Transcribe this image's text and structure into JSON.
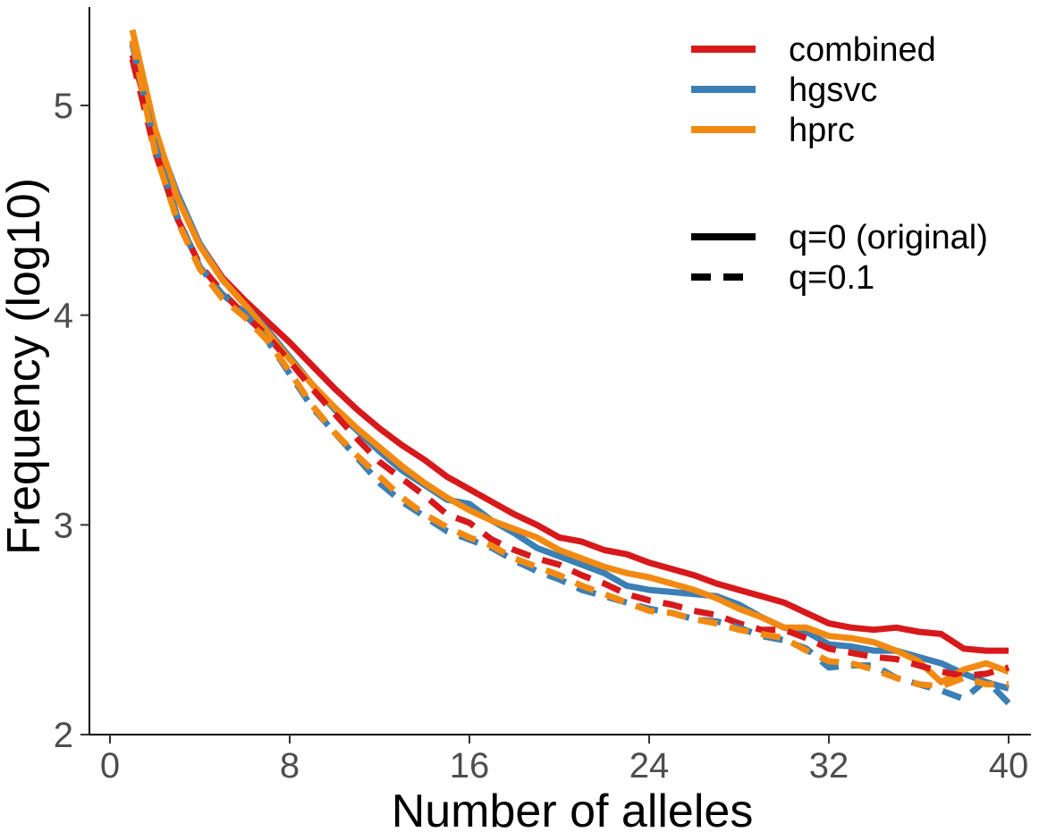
{
  "chart_data": {
    "type": "line",
    "title": "",
    "xlabel": "Number of alleles",
    "ylabel": "Frequency (log10)",
    "xlim": [
      -0.5,
      41
    ],
    "ylim": [
      2,
      5.5
    ],
    "x_ticks": [
      0,
      8,
      16,
      24,
      32,
      40
    ],
    "x_tick_labels": [
      "0",
      "8",
      "16",
      "24",
      "32",
      "40"
    ],
    "y_ticks": [
      2,
      3,
      4,
      5
    ],
    "y_tick_labels": [
      "2",
      "3",
      "4",
      "5"
    ],
    "grid": false,
    "legend_position": "top-right",
    "legend_colour": [
      {
        "label": "combined",
        "color": "#d7191c"
      },
      {
        "label": "hgsvc",
        "color": "#3a7fb5"
      },
      {
        "label": "hprc",
        "color": "#f28a12"
      }
    ],
    "legend_linetype": [
      {
        "label": "q=0 (original)",
        "dash": "solid"
      },
      {
        "label": "q=0.1",
        "dash": "dashed"
      }
    ],
    "x": [
      1,
      2,
      3,
      4,
      5,
      6,
      7,
      8,
      9,
      10,
      11,
      12,
      13,
      14,
      15,
      16,
      17,
      18,
      19,
      20,
      21,
      22,
      23,
      24,
      25,
      26,
      27,
      28,
      29,
      30,
      31,
      32,
      33,
      34,
      35,
      36,
      37,
      38,
      39,
      40
    ],
    "series": [
      {
        "name": "combined",
        "q": "q=0 (original)",
        "color": "#d7191c",
        "dash": "solid",
        "values": [
          5.24,
          4.85,
          4.56,
          4.34,
          4.18,
          4.07,
          3.97,
          3.87,
          3.76,
          3.65,
          3.55,
          3.46,
          3.38,
          3.31,
          3.23,
          3.17,
          3.11,
          3.05,
          3.0,
          2.94,
          2.92,
          2.88,
          2.86,
          2.82,
          2.79,
          2.76,
          2.72,
          2.69,
          2.66,
          2.63,
          2.58,
          2.53,
          2.51,
          2.5,
          2.51,
          2.49,
          2.48,
          2.41,
          2.4,
          2.4
        ]
      },
      {
        "name": "hgsvc",
        "q": "q=0 (original)",
        "color": "#3a7fb5",
        "dash": "solid",
        "values": [
          5.3,
          4.87,
          4.58,
          4.34,
          4.17,
          4.05,
          3.93,
          3.8,
          3.67,
          3.55,
          3.45,
          3.35,
          3.26,
          3.19,
          3.12,
          3.1,
          3.02,
          2.96,
          2.89,
          2.85,
          2.81,
          2.77,
          2.71,
          2.69,
          2.68,
          2.67,
          2.66,
          2.62,
          2.56,
          2.51,
          2.49,
          2.43,
          2.42,
          2.4,
          2.4,
          2.37,
          2.34,
          2.29,
          2.25,
          2.22
        ]
      },
      {
        "name": "hprc",
        "q": "q=0 (original)",
        "color": "#f28a12",
        "dash": "solid",
        "values": [
          5.36,
          4.89,
          4.56,
          4.33,
          4.17,
          4.05,
          3.92,
          3.79,
          3.67,
          3.56,
          3.46,
          3.37,
          3.28,
          3.2,
          3.13,
          3.07,
          3.02,
          2.98,
          2.94,
          2.88,
          2.84,
          2.8,
          2.77,
          2.75,
          2.72,
          2.69,
          2.65,
          2.6,
          2.56,
          2.51,
          2.51,
          2.47,
          2.46,
          2.44,
          2.4,
          2.35,
          2.25,
          2.31,
          2.34,
          2.3
        ]
      },
      {
        "name": "combined",
        "q": "q=0.1",
        "color": "#d7191c",
        "dash": "dashed",
        "values": [
          5.22,
          4.78,
          4.46,
          4.24,
          4.11,
          4.0,
          3.9,
          3.78,
          3.65,
          3.53,
          3.41,
          3.3,
          3.22,
          3.14,
          3.05,
          3.01,
          2.93,
          2.88,
          2.84,
          2.81,
          2.76,
          2.72,
          2.67,
          2.64,
          2.62,
          2.59,
          2.57,
          2.53,
          2.5,
          2.5,
          2.46,
          2.41,
          2.39,
          2.37,
          2.36,
          2.33,
          2.3,
          2.28,
          2.29,
          2.32
        ]
      },
      {
        "name": "hgsvc",
        "q": "q=0.1",
        "color": "#3a7fb5",
        "dash": "dashed",
        "values": [
          5.29,
          4.81,
          4.47,
          4.23,
          4.1,
          4.01,
          3.88,
          3.72,
          3.56,
          3.44,
          3.32,
          3.2,
          3.11,
          3.04,
          2.97,
          2.93,
          2.89,
          2.83,
          2.78,
          2.74,
          2.69,
          2.66,
          2.63,
          2.6,
          2.58,
          2.55,
          2.54,
          2.51,
          2.47,
          2.45,
          2.41,
          2.32,
          2.33,
          2.33,
          2.27,
          2.24,
          2.21,
          2.17,
          2.26,
          2.15
        ]
      },
      {
        "name": "hprc",
        "q": "q=0.1",
        "color": "#f28a12",
        "dash": "dashed",
        "values": [
          5.31,
          4.78,
          4.45,
          4.22,
          4.08,
          3.99,
          3.88,
          3.73,
          3.57,
          3.44,
          3.33,
          3.23,
          3.13,
          3.05,
          2.99,
          2.94,
          2.9,
          2.84,
          2.8,
          2.76,
          2.71,
          2.67,
          2.63,
          2.59,
          2.58,
          2.55,
          2.53,
          2.5,
          2.48,
          2.46,
          2.4,
          2.35,
          2.34,
          2.31,
          2.27,
          2.24,
          2.23,
          2.27,
          2.24,
          2.24
        ]
      }
    ]
  }
}
